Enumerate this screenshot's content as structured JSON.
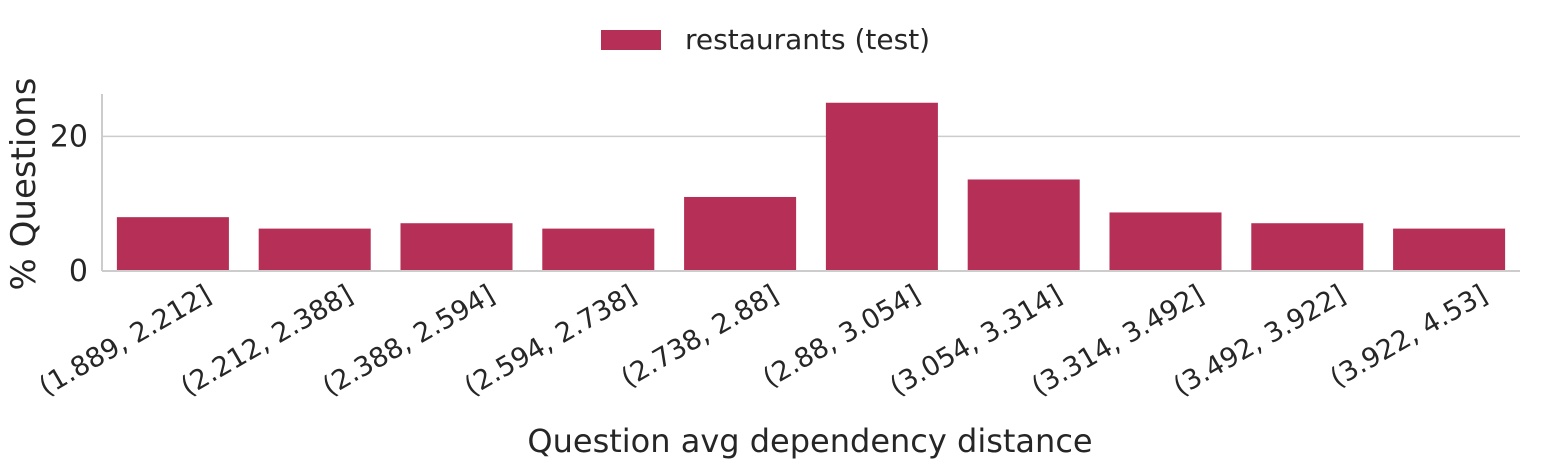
{
  "chart_data": {
    "type": "bar",
    "categories": [
      "(1.889, 2.212]",
      "(2.212, 2.388]",
      "(2.388, 2.594]",
      "(2.594, 2.738]",
      "(2.738, 2.88]",
      "(2.88, 3.054]",
      "(3.054, 3.314]",
      "(3.314, 3.492]",
      "(3.492, 3.922]",
      "(3.922, 4.53]"
    ],
    "series": [
      {
        "name": "restaurants (test)",
        "values": [
          8.0,
          6.3,
          7.1,
          6.3,
          11.0,
          25.0,
          13.6,
          8.7,
          7.1,
          6.3
        ]
      }
    ],
    "xlabel": "Question avg dependency distance",
    "ylabel": "% Questions",
    "ylim": [
      0,
      26.3
    ],
    "yticks": [
      "0",
      "20"
    ],
    "ytick_values": [
      0,
      20
    ],
    "grid": "horizontal",
    "legend_position": "top-center",
    "colors": {
      "bar": "#b52f56",
      "grid": "#cccccc",
      "axis": "#cccccc",
      "text": "#262626"
    }
  }
}
